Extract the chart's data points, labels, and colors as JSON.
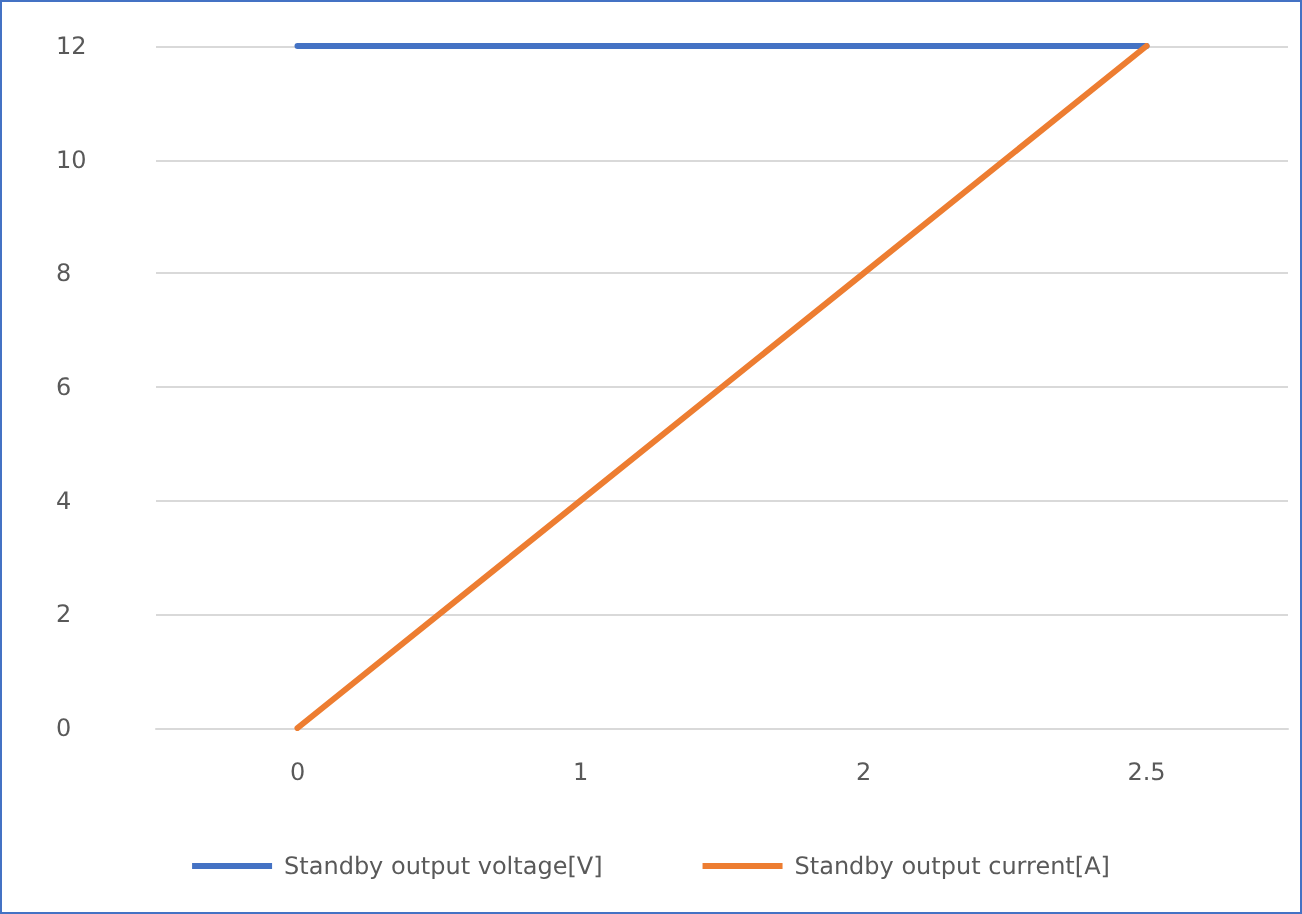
{
  "chart_data": {
    "type": "line",
    "categories": [
      "0",
      "1",
      "2",
      "2.5"
    ],
    "series": [
      {
        "name": "Standby output voltage[V]",
        "color": "#4472c4",
        "values": [
          12,
          12,
          12,
          12
        ]
      },
      {
        "name": "Standby output current[A]",
        "color": "#ed7d31",
        "values": [
          0,
          4,
          8,
          12
        ]
      }
    ],
    "ylim": [
      0,
      12
    ],
    "yticks": [
      0,
      2,
      4,
      6,
      8,
      10,
      12
    ],
    "grid": "y",
    "legend": "bottom",
    "marker": "none",
    "line_style": "solid"
  }
}
